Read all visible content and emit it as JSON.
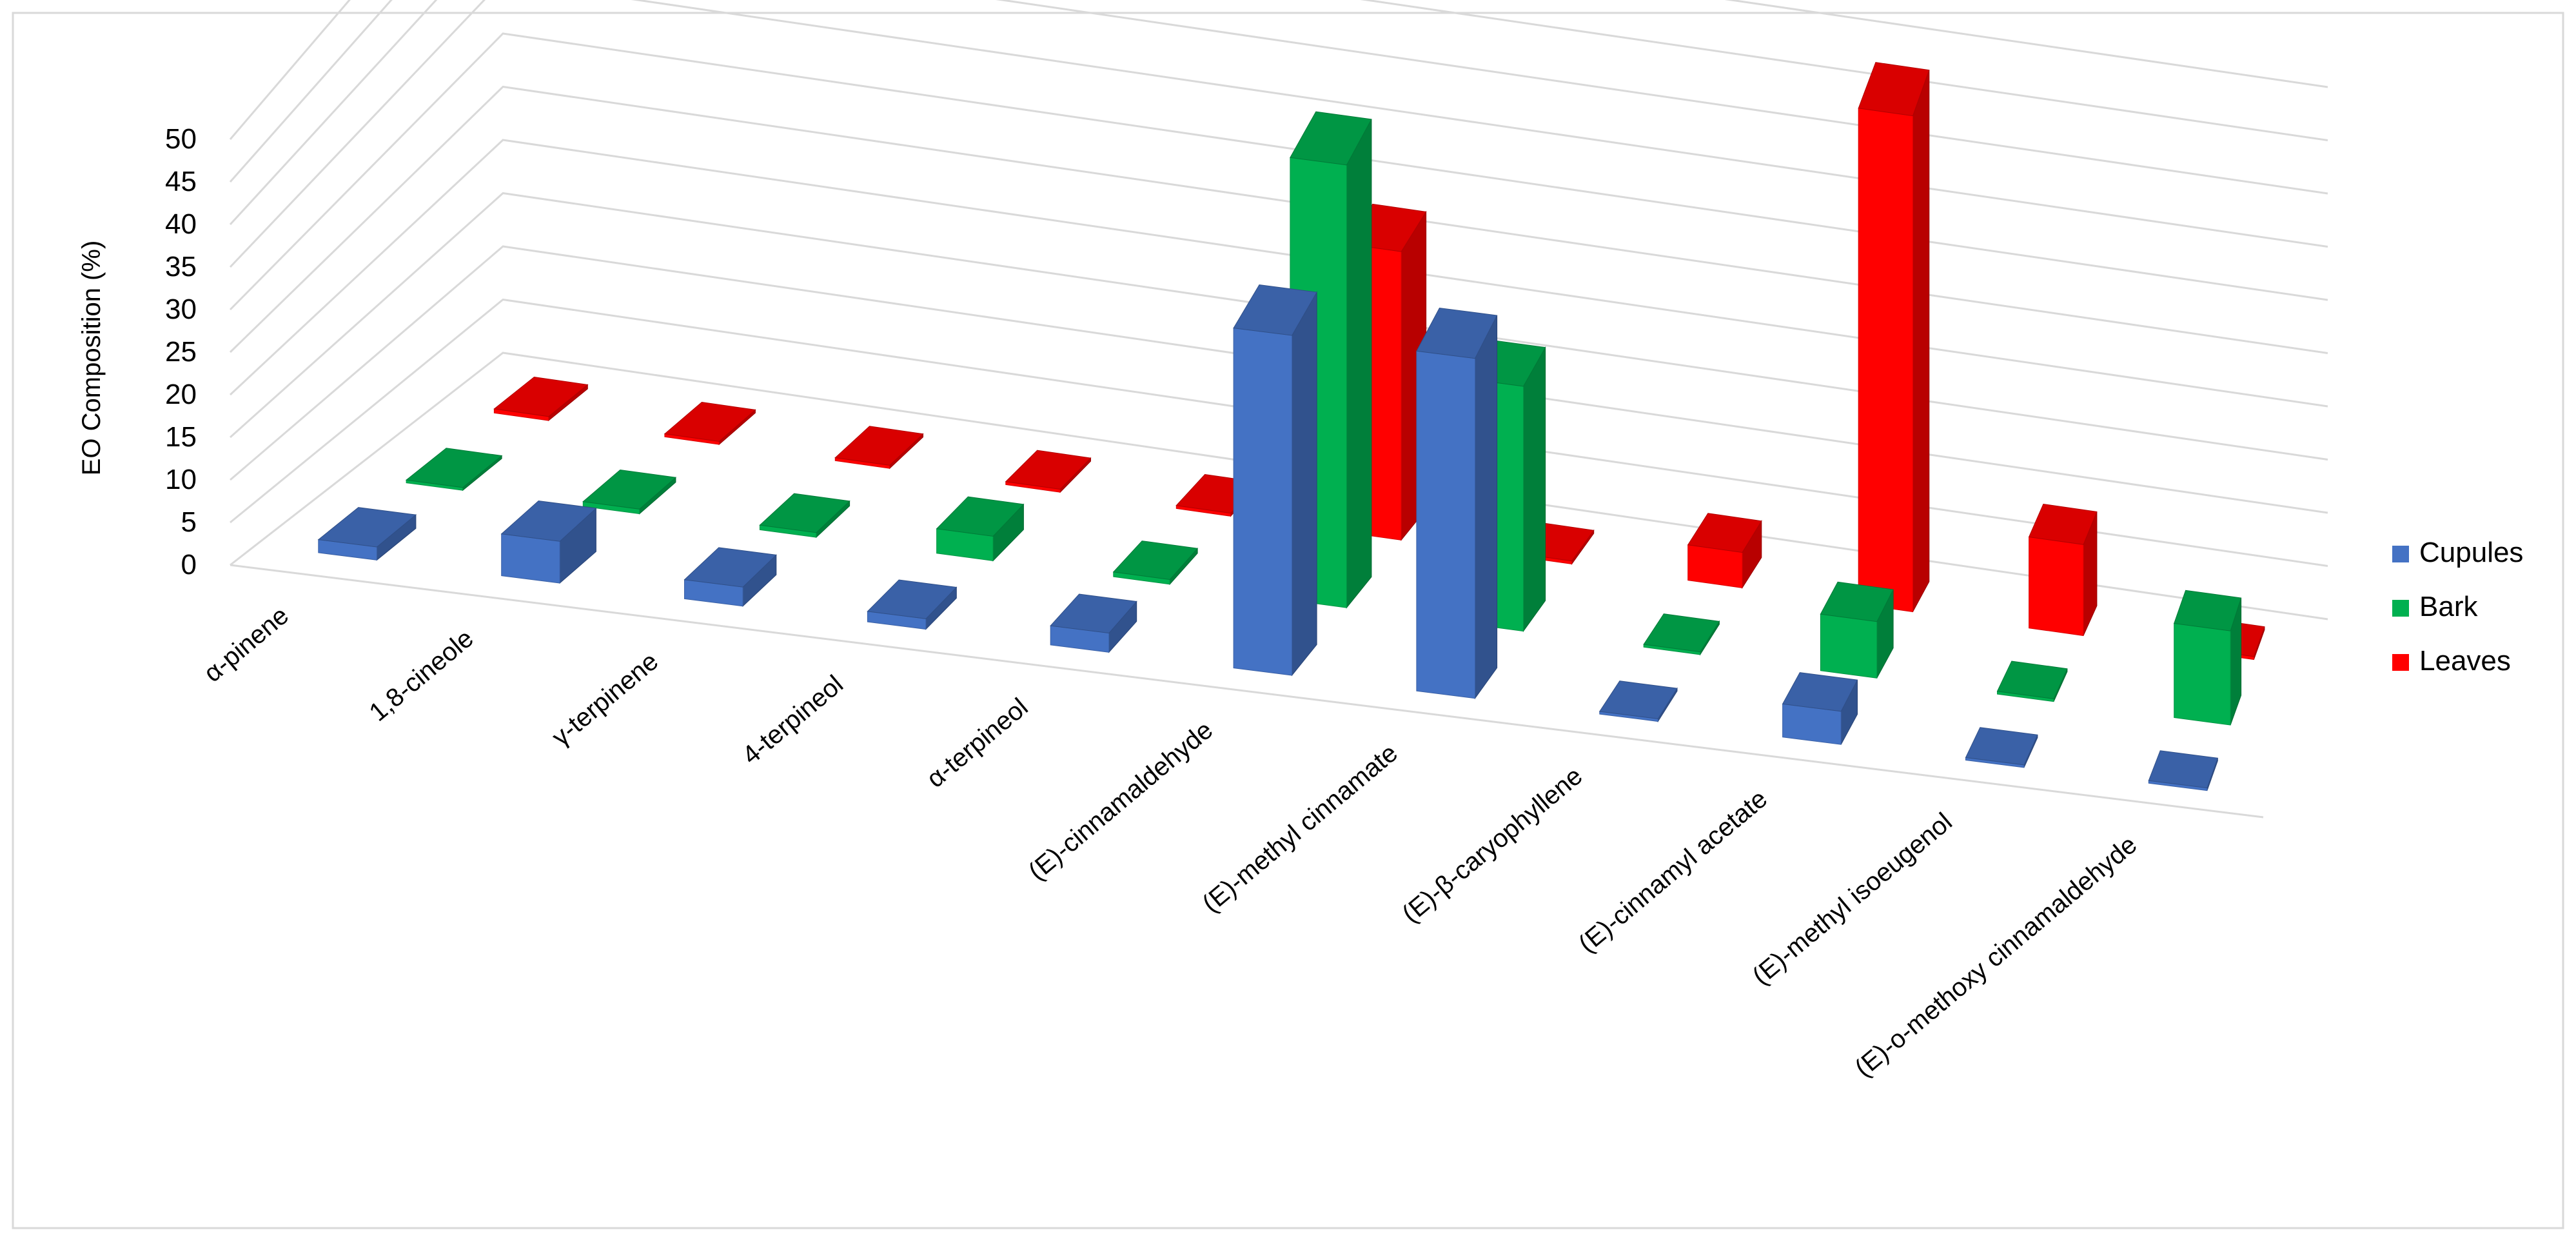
{
  "chart_data": {
    "type": "bar",
    "subtype": "3d-clustered-column",
    "title": "",
    "ylabel": "EO Composition (%)",
    "ylim": [
      0,
      50
    ],
    "yticks": [
      "0",
      "5",
      "10",
      "15",
      "20",
      "25",
      "30",
      "35",
      "40",
      "45",
      "50"
    ],
    "grid": true,
    "legend_position": "right",
    "categories": [
      "α-pinene",
      "1,8-cineole",
      "γ-terpinene",
      "4-terpineol",
      "α-terpineol",
      "(E)-cinnamaldehyde",
      "(E)-methyl cinnamate",
      "(E)-β-caryophyllene",
      "(E)-cinnamyl acetate",
      "(E)-methyl isoeugenol",
      "(E)-o-methoxy cinnamaldehyde"
    ],
    "series": [
      {
        "name": "Leaves",
        "color": "#ff0000",
        "values": [
          0.4,
          0.3,
          0.3,
          0.3,
          0.3,
          28.5,
          0.3,
          3.5,
          49.0,
          9.0,
          0.3
        ]
      },
      {
        "name": "Bark",
        "color": "#00b050",
        "values": [
          0.3,
          0.5,
          0.5,
          2.6,
          0.5,
          47.0,
          26.0,
          0.3,
          6.0,
          0.3,
          10.0
        ]
      },
      {
        "name": "Cupules",
        "color": "#4472c4",
        "values": [
          1.5,
          4.8,
          2.2,
          1.2,
          2.2,
          39.0,
          39.0,
          0.3,
          3.8,
          0.3,
          0.3
        ]
      }
    ],
    "legend_order": [
      "Cupules",
      "Bark",
      "Leaves"
    ]
  }
}
